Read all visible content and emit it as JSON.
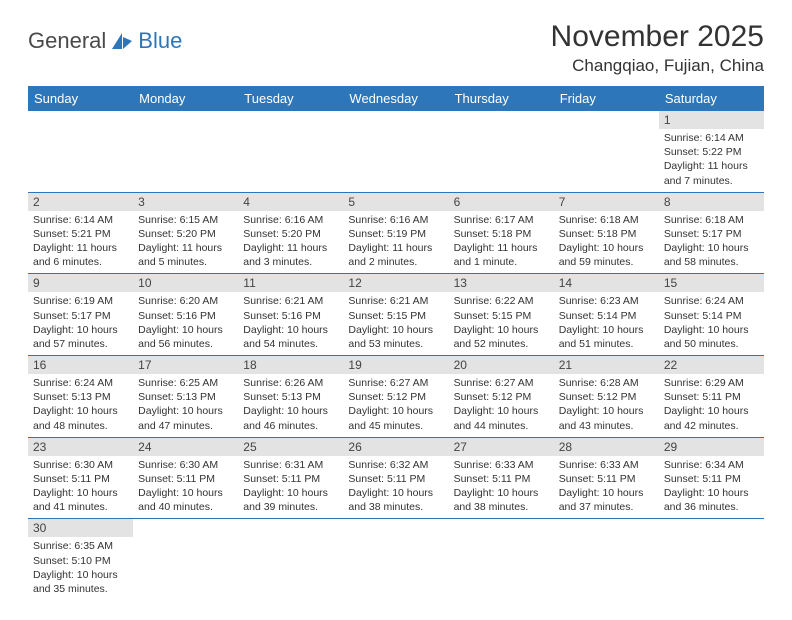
{
  "logo": {
    "general": "General",
    "blue": "Blue"
  },
  "title": "November 2025",
  "location": "Changqiao, Fujian, China",
  "colors": {
    "header_bg": "#2d76ba",
    "header_text": "#ffffff",
    "daynum_bg": "#e3e3e3",
    "row_border": "#2d76ba",
    "text": "#333333"
  },
  "dayNames": [
    "Sunday",
    "Monday",
    "Tuesday",
    "Wednesday",
    "Thursday",
    "Friday",
    "Saturday"
  ],
  "weeks": [
    [
      null,
      null,
      null,
      null,
      null,
      null,
      {
        "n": "1",
        "sr": "6:14 AM",
        "ss": "5:22 PM",
        "dl": "11 hours and 7 minutes."
      }
    ],
    [
      {
        "n": "2",
        "sr": "6:14 AM",
        "ss": "5:21 PM",
        "dl": "11 hours and 6 minutes."
      },
      {
        "n": "3",
        "sr": "6:15 AM",
        "ss": "5:20 PM",
        "dl": "11 hours and 5 minutes."
      },
      {
        "n": "4",
        "sr": "6:16 AM",
        "ss": "5:20 PM",
        "dl": "11 hours and 3 minutes."
      },
      {
        "n": "5",
        "sr": "6:16 AM",
        "ss": "5:19 PM",
        "dl": "11 hours and 2 minutes."
      },
      {
        "n": "6",
        "sr": "6:17 AM",
        "ss": "5:18 PM",
        "dl": "11 hours and 1 minute."
      },
      {
        "n": "7",
        "sr": "6:18 AM",
        "ss": "5:18 PM",
        "dl": "10 hours and 59 minutes."
      },
      {
        "n": "8",
        "sr": "6:18 AM",
        "ss": "5:17 PM",
        "dl": "10 hours and 58 minutes."
      }
    ],
    [
      {
        "n": "9",
        "sr": "6:19 AM",
        "ss": "5:17 PM",
        "dl": "10 hours and 57 minutes."
      },
      {
        "n": "10",
        "sr": "6:20 AM",
        "ss": "5:16 PM",
        "dl": "10 hours and 56 minutes."
      },
      {
        "n": "11",
        "sr": "6:21 AM",
        "ss": "5:16 PM",
        "dl": "10 hours and 54 minutes."
      },
      {
        "n": "12",
        "sr": "6:21 AM",
        "ss": "5:15 PM",
        "dl": "10 hours and 53 minutes."
      },
      {
        "n": "13",
        "sr": "6:22 AM",
        "ss": "5:15 PM",
        "dl": "10 hours and 52 minutes."
      },
      {
        "n": "14",
        "sr": "6:23 AM",
        "ss": "5:14 PM",
        "dl": "10 hours and 51 minutes."
      },
      {
        "n": "15",
        "sr": "6:24 AM",
        "ss": "5:14 PM",
        "dl": "10 hours and 50 minutes."
      }
    ],
    [
      {
        "n": "16",
        "sr": "6:24 AM",
        "ss": "5:13 PM",
        "dl": "10 hours and 48 minutes."
      },
      {
        "n": "17",
        "sr": "6:25 AM",
        "ss": "5:13 PM",
        "dl": "10 hours and 47 minutes."
      },
      {
        "n": "18",
        "sr": "6:26 AM",
        "ss": "5:13 PM",
        "dl": "10 hours and 46 minutes."
      },
      {
        "n": "19",
        "sr": "6:27 AM",
        "ss": "5:12 PM",
        "dl": "10 hours and 45 minutes."
      },
      {
        "n": "20",
        "sr": "6:27 AM",
        "ss": "5:12 PM",
        "dl": "10 hours and 44 minutes."
      },
      {
        "n": "21",
        "sr": "6:28 AM",
        "ss": "5:12 PM",
        "dl": "10 hours and 43 minutes."
      },
      {
        "n": "22",
        "sr": "6:29 AM",
        "ss": "5:11 PM",
        "dl": "10 hours and 42 minutes."
      }
    ],
    [
      {
        "n": "23",
        "sr": "6:30 AM",
        "ss": "5:11 PM",
        "dl": "10 hours and 41 minutes."
      },
      {
        "n": "24",
        "sr": "6:30 AM",
        "ss": "5:11 PM",
        "dl": "10 hours and 40 minutes."
      },
      {
        "n": "25",
        "sr": "6:31 AM",
        "ss": "5:11 PM",
        "dl": "10 hours and 39 minutes."
      },
      {
        "n": "26",
        "sr": "6:32 AM",
        "ss": "5:11 PM",
        "dl": "10 hours and 38 minutes."
      },
      {
        "n": "27",
        "sr": "6:33 AM",
        "ss": "5:11 PM",
        "dl": "10 hours and 38 minutes."
      },
      {
        "n": "28",
        "sr": "6:33 AM",
        "ss": "5:11 PM",
        "dl": "10 hours and 37 minutes."
      },
      {
        "n": "29",
        "sr": "6:34 AM",
        "ss": "5:11 PM",
        "dl": "10 hours and 36 minutes."
      }
    ],
    [
      {
        "n": "30",
        "sr": "6:35 AM",
        "ss": "5:10 PM",
        "dl": "10 hours and 35 minutes."
      },
      null,
      null,
      null,
      null,
      null,
      null
    ]
  ],
  "labels": {
    "sunrise": "Sunrise: ",
    "sunset": "Sunset: ",
    "daylight": "Daylight: "
  }
}
